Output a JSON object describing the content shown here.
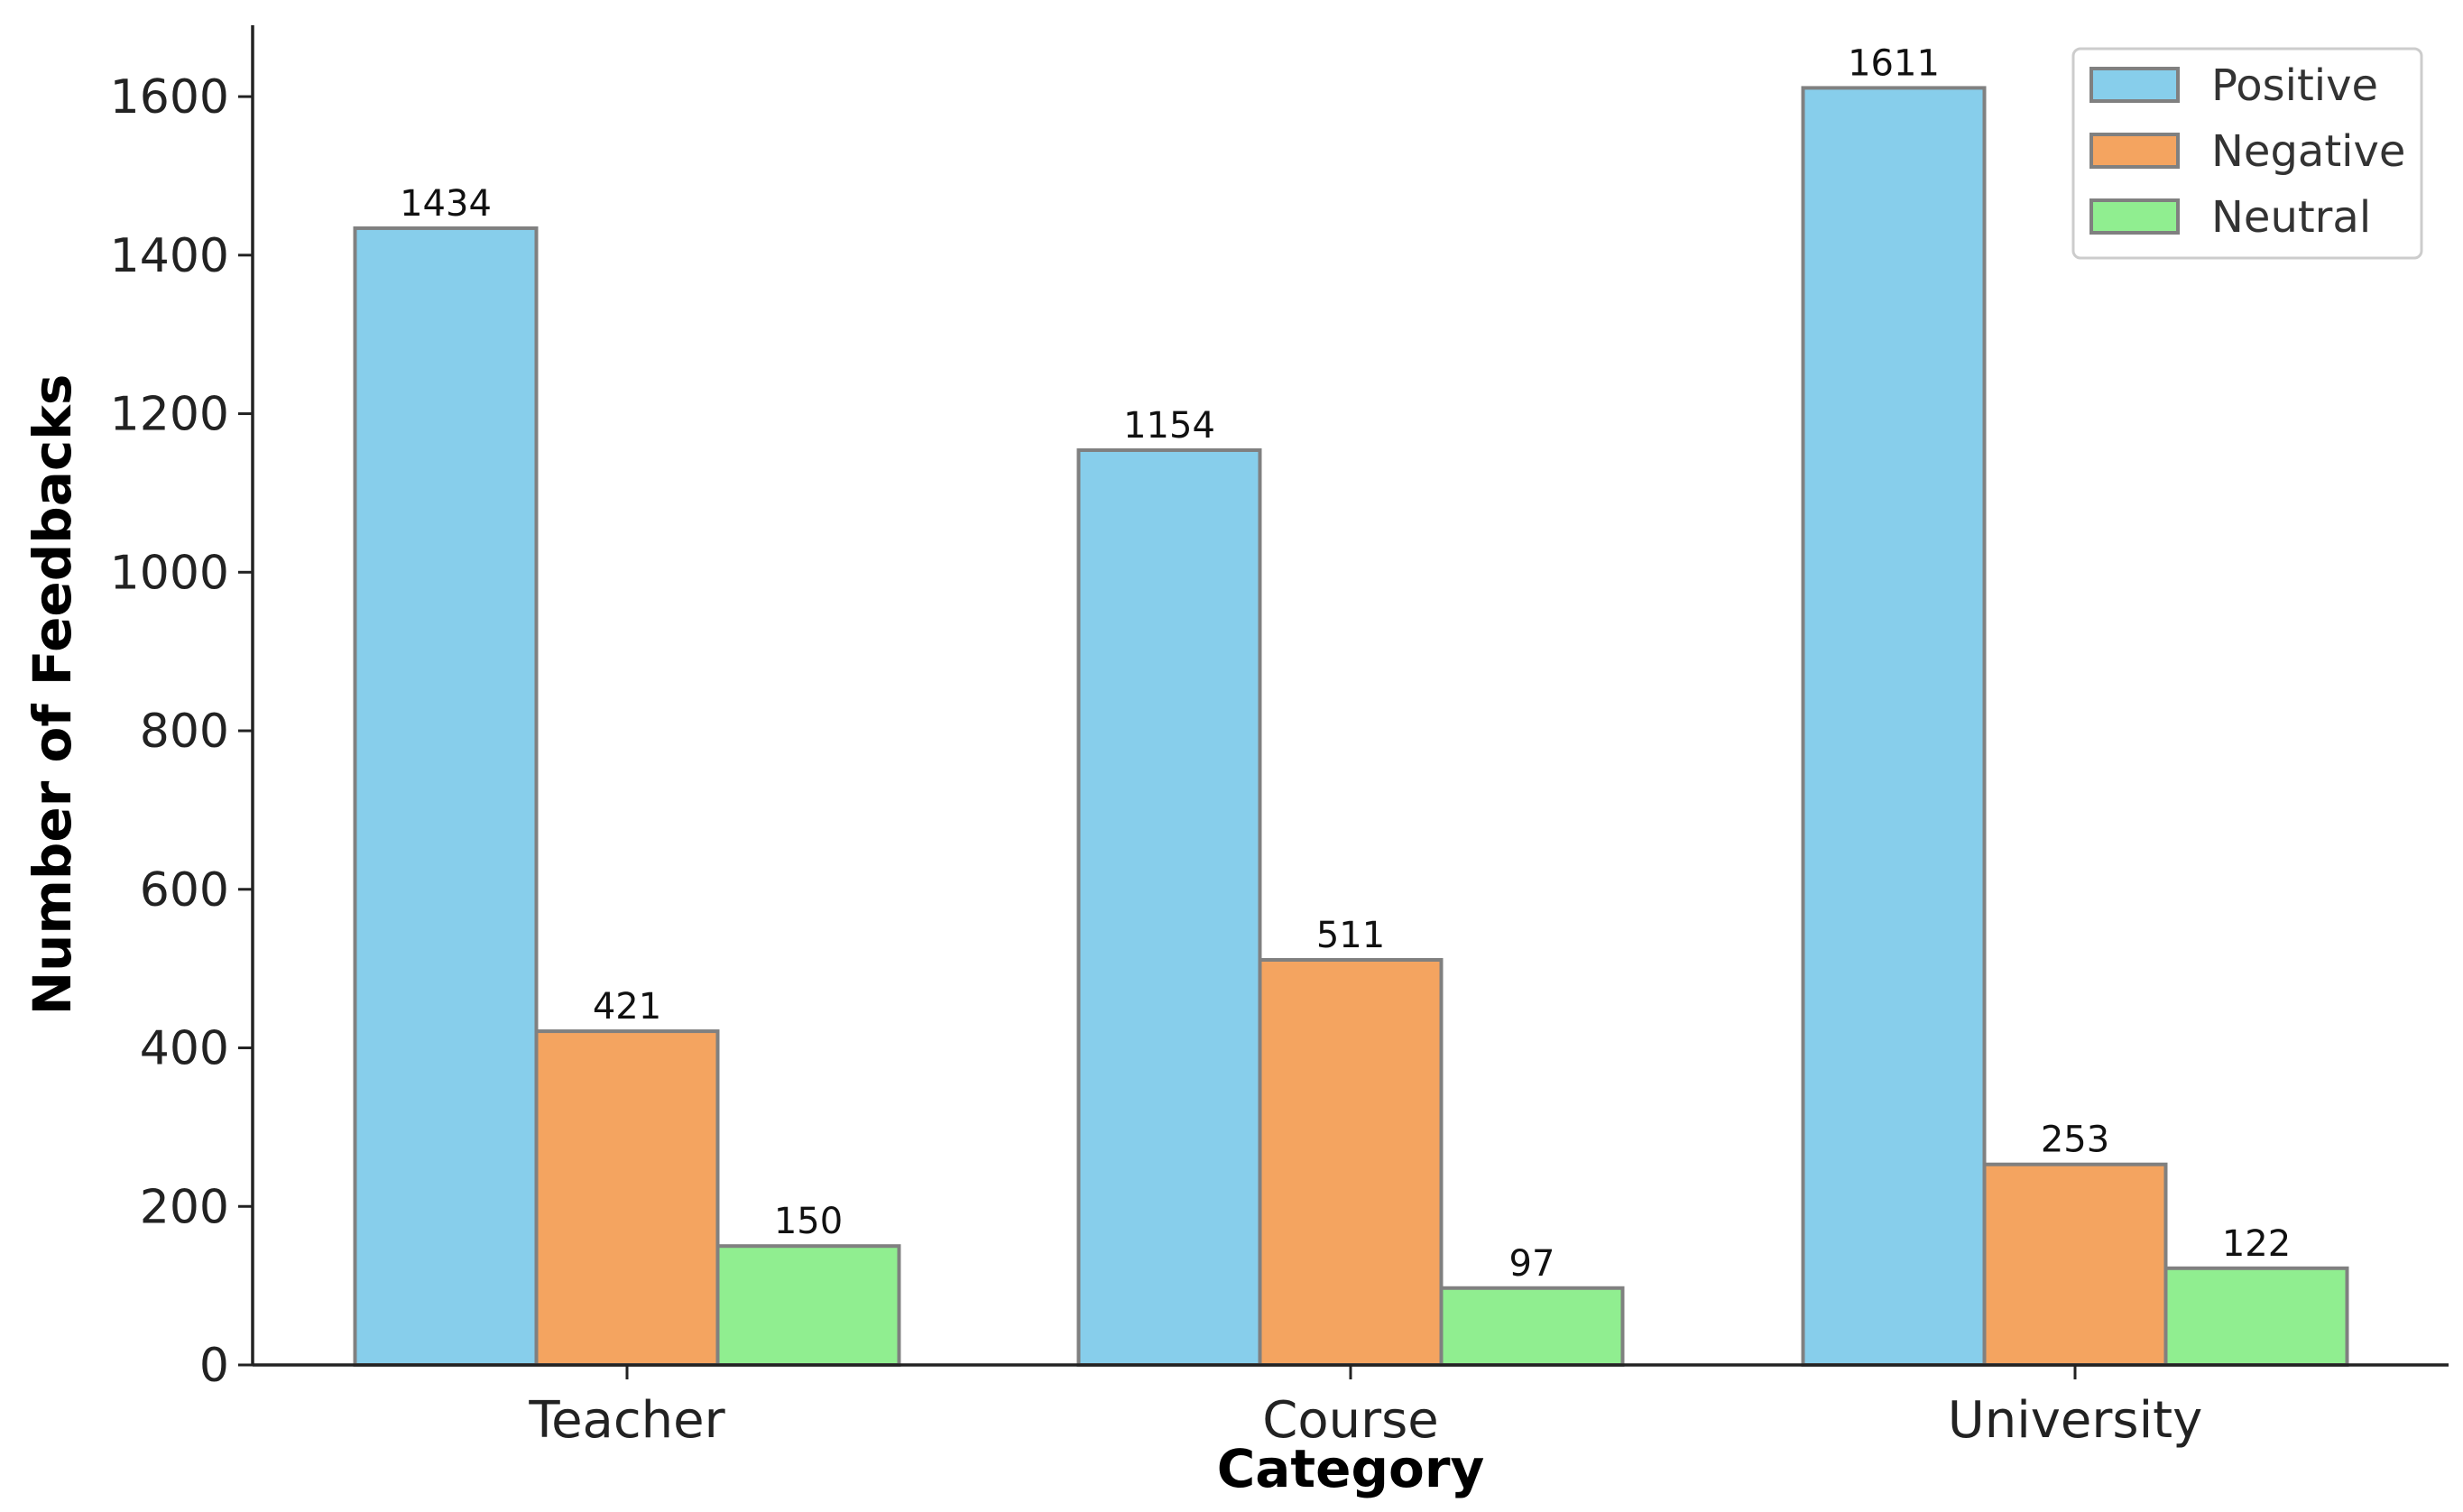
{
  "chart_data": {
    "type": "bar",
    "title": "",
    "xlabel": "Category",
    "ylabel": "Number of Feedbacks",
    "categories": [
      "Teacher",
      "Course",
      "University"
    ],
    "series": [
      {
        "name": "Positive",
        "values": [
          1434,
          1154,
          1611
        ],
        "color": "#87ceeb"
      },
      {
        "name": "Negative",
        "values": [
          421,
          511,
          253
        ],
        "color": "#f4a460"
      },
      {
        "name": "Neutral",
        "values": [
          150,
          97,
          122
        ],
        "color": "#90ee90"
      }
    ],
    "ylim": [
      0,
      1690
    ],
    "yticks": [
      0,
      200,
      400,
      600,
      800,
      1000,
      1200,
      1400,
      1600
    ],
    "grid": false,
    "legend_position": "top-right",
    "data_labels": true,
    "bar_edge_color": "#808080"
  }
}
